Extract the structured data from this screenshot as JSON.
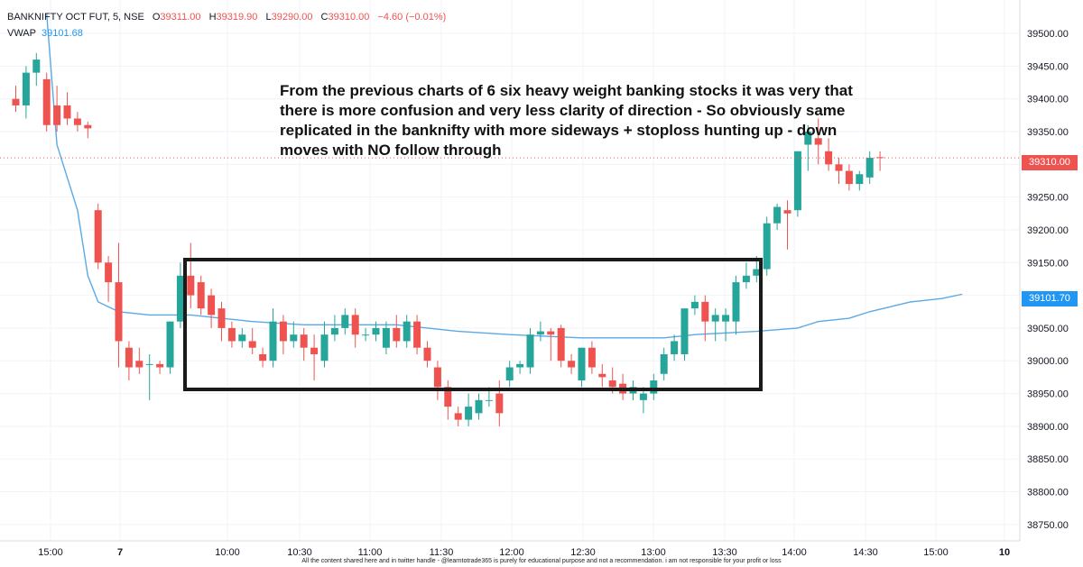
{
  "header": {
    "symbol": "BANKNIFTY OCT FUT, 5, NSE",
    "o_label": "O",
    "o_value": "39311.00",
    "h_label": "H",
    "h_value": "39319.90",
    "l_label": "L",
    "l_value": "39290.00",
    "c_label": "C",
    "c_value": "39310.00",
    "change": "−4.60 (−0.01%)",
    "vwap_label": "VWAP",
    "vwap_value": "39101.68"
  },
  "annotation": "From the previous charts of 6 six heavy weight banking stocks it was very that there is more confusion and very less clarity of direction - So obviously same replicated in the banknifty with more sideways + stoploss hunting up - down moves with NO follow through",
  "footer": "All the content shared here and in twitter handle - @learntotrade365 is purely for educational purpose and not a recommendation. i am not responsible for your profit or loss",
  "price_badge": "39310.00",
  "vwap_badge": "39101.70",
  "colors": {
    "up": "#26a69a",
    "down": "#ef5350",
    "vwap": "#5aa9e6",
    "box": "#1a1a1a"
  },
  "chart_data": {
    "type": "candlestick",
    "ylim": [
      38725,
      39540
    ],
    "y_ticks": [
      "39500.00",
      "39450.00",
      "39400.00",
      "39350.00",
      "39300.00",
      "39250.00",
      "39200.00",
      "39150.00",
      "39100.00",
      "39050.00",
      "39000.00",
      "38950.00",
      "38900.00",
      "38850.00",
      "38800.00",
      "38750.00"
    ],
    "x_ticks": [
      "15:00",
      "7",
      "10:00",
      "10:30",
      "11:00",
      "11:30",
      "12:00",
      "12:30",
      "13:00",
      "13:30",
      "14:00",
      "14:30",
      "15:00",
      "10"
    ],
    "last_price": 39310,
    "candles": [
      [
        39400,
        39420,
        39380,
        39390
      ],
      [
        39390,
        39450,
        39370,
        39440
      ],
      [
        39440,
        39470,
        39420,
        39460
      ],
      [
        39430,
        39440,
        39350,
        39360
      ],
      [
        39390,
        39420,
        39350,
        39360
      ],
      [
        39390,
        39410,
        39360,
        39370
      ],
      [
        39370,
        39380,
        39350,
        39360
      ],
      [
        39360,
        39365,
        39340,
        39355
      ],
      [
        39230,
        39240,
        39140,
        39150
      ],
      [
        39150,
        39160,
        39090,
        39120
      ],
      [
        39120,
        39180,
        38990,
        39030
      ],
      [
        39020,
        39030,
        38970,
        38990
      ],
      [
        39000,
        39020,
        38980,
        38990
      ],
      [
        38995,
        39010,
        38940,
        38995
      ],
      [
        38995,
        39000,
        38980,
        38990
      ],
      [
        38990,
        39060,
        38980,
        39060
      ],
      [
        39060,
        39150,
        39050,
        39130
      ],
      [
        39130,
        39180,
        39080,
        39100
      ],
      [
        39120,
        39130,
        39070,
        39080
      ],
      [
        39100,
        39110,
        39050,
        39070
      ],
      [
        39080,
        39090,
        39030,
        39050
      ],
      [
        39050,
        39060,
        39020,
        39030
      ],
      [
        39030,
        39050,
        39020,
        39040
      ],
      [
        39030,
        39050,
        39010,
        39020
      ],
      [
        39010,
        39020,
        38990,
        39000
      ],
      [
        39000,
        39080,
        38990,
        39060
      ],
      [
        39060,
        39070,
        39010,
        39030
      ],
      [
        39030,
        39060,
        39020,
        39040
      ],
      [
        39040,
        39050,
        39000,
        39020
      ],
      [
        39020,
        39040,
        38970,
        39010
      ],
      [
        39000,
        39060,
        38990,
        39040
      ],
      [
        39040,
        39070,
        39030,
        39050
      ],
      [
        39050,
        39080,
        39040,
        39070
      ],
      [
        39070,
        39080,
        39020,
        39040
      ],
      [
        39040,
        39050,
        39030,
        39040
      ],
      [
        39040,
        39060,
        39030,
        39050
      ],
      [
        39020,
        39060,
        39010,
        39050
      ],
      [
        39050,
        39070,
        39020,
        39030
      ],
      [
        39030,
        39070,
        39020,
        39060
      ],
      [
        39060,
        39070,
        39010,
        39020
      ],
      [
        39020,
        39030,
        38990,
        39000
      ],
      [
        38990,
        39000,
        38940,
        38960
      ],
      [
        38960,
        38970,
        38910,
        38930
      ],
      [
        38920,
        38930,
        38900,
        38910
      ],
      [
        38910,
        38950,
        38900,
        38930
      ],
      [
        38920,
        38950,
        38910,
        38940
      ],
      [
        38940,
        38960,
        38930,
        38940
      ],
      [
        38950,
        38970,
        38900,
        38920
      ],
      [
        38970,
        39000,
        38960,
        38990
      ],
      [
        38990,
        39000,
        38980,
        38995
      ],
      [
        38990,
        39050,
        38980,
        39040
      ],
      [
        39040,
        39060,
        39030,
        39045
      ],
      [
        39045,
        39050,
        39000,
        39040
      ],
      [
        39050,
        39055,
        38990,
        39000
      ],
      [
        39000,
        39010,
        38980,
        38990
      ],
      [
        38970,
        39020,
        38960,
        39020
      ],
      [
        39020,
        39030,
        38980,
        38990
      ],
      [
        38980,
        38995,
        38960,
        38975
      ],
      [
        38970,
        38990,
        38950,
        38960
      ],
      [
        38965,
        38980,
        38940,
        38950
      ],
      [
        38950,
        38970,
        38940,
        38960
      ],
      [
        38940,
        38960,
        38920,
        38950
      ],
      [
        38950,
        38980,
        38940,
        38970
      ],
      [
        38980,
        39020,
        38970,
        39010
      ],
      [
        39010,
        39040,
        39000,
        39030
      ]
    ],
    "candles_after": [
      [
        39010,
        39040,
        39000,
        39080
      ],
      [
        39080,
        39100,
        39070,
        39090
      ],
      [
        39090,
        39100,
        39030,
        39060
      ],
      [
        39060,
        39080,
        39030,
        39070
      ],
      [
        39060,
        39080,
        39030,
        39070
      ],
      [
        39060,
        39130,
        39040,
        39120
      ],
      [
        39120,
        39150,
        39110,
        39130
      ],
      [
        39130,
        39160,
        39120,
        39140
      ],
      [
        39140,
        39220,
        39130,
        39210
      ],
      [
        39210,
        39240,
        39200,
        39235
      ],
      [
        39230,
        39245,
        39170,
        39225
      ],
      [
        39230,
        39320,
        39220,
        39320
      ],
      [
        39330,
        39360,
        39290,
        39350
      ],
      [
        39340,
        39370,
        39300,
        39330
      ],
      [
        39320,
        39340,
        39290,
        39300
      ],
      [
        39300,
        39310,
        39270,
        39290
      ],
      [
        39290,
        39300,
        39260,
        39270
      ],
      [
        39270,
        39290,
        39260,
        39285
      ],
      [
        39280,
        39320,
        39270,
        39310
      ],
      [
        39311,
        39319.9,
        39290,
        39310
      ]
    ],
    "vwap": [
      [
        3,
        39530
      ],
      [
        4,
        39330
      ],
      [
        6,
        39230
      ],
      [
        7,
        39130
      ],
      [
        8,
        39090
      ],
      [
        10,
        39075
      ],
      [
        13,
        39070
      ],
      [
        17,
        39070
      ],
      [
        23,
        39060
      ],
      [
        28,
        39055
      ],
      [
        33,
        39055
      ],
      [
        37,
        39055
      ],
      [
        40,
        39050
      ],
      [
        43,
        39045
      ],
      [
        48,
        39040
      ],
      [
        55,
        39035
      ],
      [
        60,
        39035
      ],
      [
        63,
        39035
      ],
      [
        66,
        39040
      ],
      [
        72,
        39045
      ],
      [
        76,
        39050
      ],
      [
        78,
        39060
      ],
      [
        81,
        39065
      ],
      [
        83,
        39075
      ],
      [
        87,
        39090
      ],
      [
        90,
        39095
      ],
      [
        92,
        39101.7
      ]
    ]
  }
}
